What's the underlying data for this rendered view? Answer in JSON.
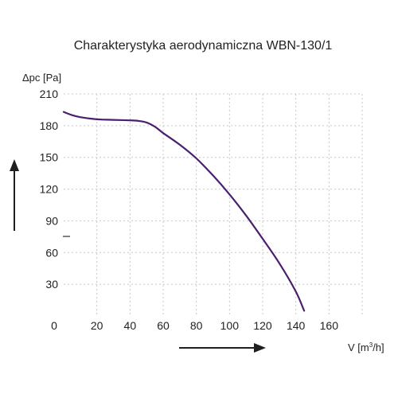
{
  "chart_data": {
    "type": "line",
    "title": "Charakterystyka aerodynamiczna WBN-130/1",
    "ylabel": "Δpc [Pa]",
    "xlabel_prefix": "V [m",
    "xlabel_sup": "3",
    "xlabel_suffix": "/h]",
    "xlim": [
      0,
      180
    ],
    "ylim": [
      0,
      210
    ],
    "x_ticks": [
      "0",
      "20",
      "40",
      "60",
      "80",
      "100",
      "120",
      "140",
      "160"
    ],
    "x_tick_values": [
      0,
      20,
      40,
      60,
      80,
      100,
      120,
      140,
      160
    ],
    "y_ticks": [
      "210",
      "180",
      "150",
      "120",
      "90",
      "60",
      "30"
    ],
    "y_tick_values": [
      210,
      180,
      150,
      120,
      90,
      60,
      30
    ],
    "grid": true,
    "series": [
      {
        "color": "#4b1f6f",
        "x": [
          0,
          5,
          10,
          20,
          30,
          40,
          45,
          50,
          55,
          60,
          70,
          80,
          90,
          100,
          110,
          120,
          130,
          140,
          145
        ],
        "y": [
          193,
          190,
          188,
          186,
          185.5,
          185,
          184.5,
          183,
          179,
          173,
          162,
          149,
          133,
          115,
          95,
          73,
          50,
          23,
          5
        ]
      }
    ],
    "arrow_color": "#1f1f1f"
  }
}
